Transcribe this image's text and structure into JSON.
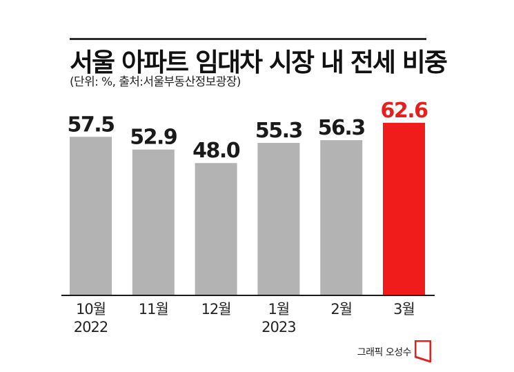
{
  "title": "서울 아파트 임대차 시장 내 전세 비중",
  "subtitle": "(단위: %, 출처:서울부동산정보광장)",
  "credit": "그래픽 오성수",
  "colors": {
    "bar": "#b3b3b3",
    "highlight": "#f01c1c",
    "text": "#1a1a1a",
    "highlight_text": "#e61e1e"
  },
  "chart_data": {
    "type": "bar",
    "title": "서울 아파트 임대차 시장 내 전세 비중",
    "unit": "%",
    "categories": [
      {
        "label": "10월",
        "year": "2022"
      },
      {
        "label": "11월",
        "year": ""
      },
      {
        "label": "12월",
        "year": ""
      },
      {
        "label": "1월",
        "year": "2023"
      },
      {
        "label": "2월",
        "year": ""
      },
      {
        "label": "3월",
        "year": ""
      }
    ],
    "values": [
      57.5,
      52.9,
      48.0,
      55.3,
      56.3,
      62.6
    ],
    "value_labels": [
      "57.5",
      "52.9",
      "48.0",
      "55.3",
      "56.3",
      "62.6"
    ],
    "highlight_index": 5,
    "xlabel": "",
    "ylabel": "",
    "grid": false
  }
}
